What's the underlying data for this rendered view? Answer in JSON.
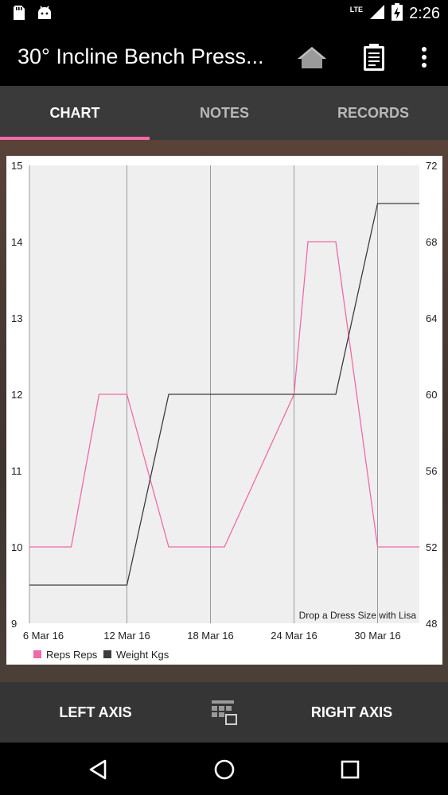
{
  "status_bar": {
    "time": "2:26",
    "network": "LTE",
    "icons": [
      "sd-card-icon",
      "android-debug-icon",
      "signal-icon",
      "battery-charging-icon"
    ]
  },
  "app_bar": {
    "title": "30° Incline Bench Press...",
    "icons": [
      "home-icon",
      "clipboard-icon",
      "overflow-menu-icon"
    ]
  },
  "tabs": [
    {
      "label": "CHART",
      "active": true
    },
    {
      "label": "NOTES",
      "active": false
    },
    {
      "label": "RECORDS",
      "active": false
    }
  ],
  "colors": {
    "accent_pink": "#f06aa8",
    "series_weight": "#3c3c3c",
    "plot_bg": "#efefef"
  },
  "chart_data": {
    "type": "line",
    "x_tick_labels": [
      "6 Mar 16",
      "12 Mar 16",
      "18 Mar 16",
      "24 Mar 16",
      "30 Mar 16"
    ],
    "x_range": [
      "2016-03-05",
      "2016-04-02"
    ],
    "left_axis": {
      "ticks": [
        9,
        10,
        11,
        12,
        13,
        14,
        15
      ],
      "ylim": [
        9,
        15
      ]
    },
    "right_axis": {
      "ticks": [
        48,
        52,
        56,
        60,
        64,
        68,
        72
      ],
      "ylim": [
        48,
        72
      ]
    },
    "annotation": "Drop a Dress Size with Lisa",
    "grid": "vertical",
    "legend_position": "bottom-left",
    "series": [
      {
        "name": "Reps Reps",
        "axis": "left",
        "color": "#f06aa8",
        "points": [
          {
            "x": "2016-03-05",
            "y": 10
          },
          {
            "x": "2016-03-08",
            "y": 10
          },
          {
            "x": "2016-03-10",
            "y": 12
          },
          {
            "x": "2016-03-12",
            "y": 12
          },
          {
            "x": "2016-03-15",
            "y": 10
          },
          {
            "x": "2016-03-19",
            "y": 10
          },
          {
            "x": "2016-03-24",
            "y": 12
          },
          {
            "x": "2016-03-25",
            "y": 14
          },
          {
            "x": "2016-03-27",
            "y": 14
          },
          {
            "x": "2016-03-30",
            "y": 10
          },
          {
            "x": "2016-04-02",
            "y": 10
          }
        ]
      },
      {
        "name": "Weight Kgs",
        "axis": "right",
        "color": "#3c3c3c",
        "points": [
          {
            "x": "2016-03-05",
            "y": 50
          },
          {
            "x": "2016-03-12",
            "y": 50
          },
          {
            "x": "2016-03-15",
            "y": 60
          },
          {
            "x": "2016-03-27",
            "y": 60
          },
          {
            "x": "2016-03-30",
            "y": 70
          },
          {
            "x": "2016-04-02",
            "y": 70
          }
        ]
      }
    ]
  },
  "bottom_bar": {
    "left_axis_label": "LEFT AXIS",
    "right_axis_label": "RIGHT AXIS",
    "middle_icon": "calendar-grid-icon"
  },
  "nav_bar": {
    "icons": [
      "back-icon",
      "home-circle-icon",
      "recents-icon"
    ]
  }
}
